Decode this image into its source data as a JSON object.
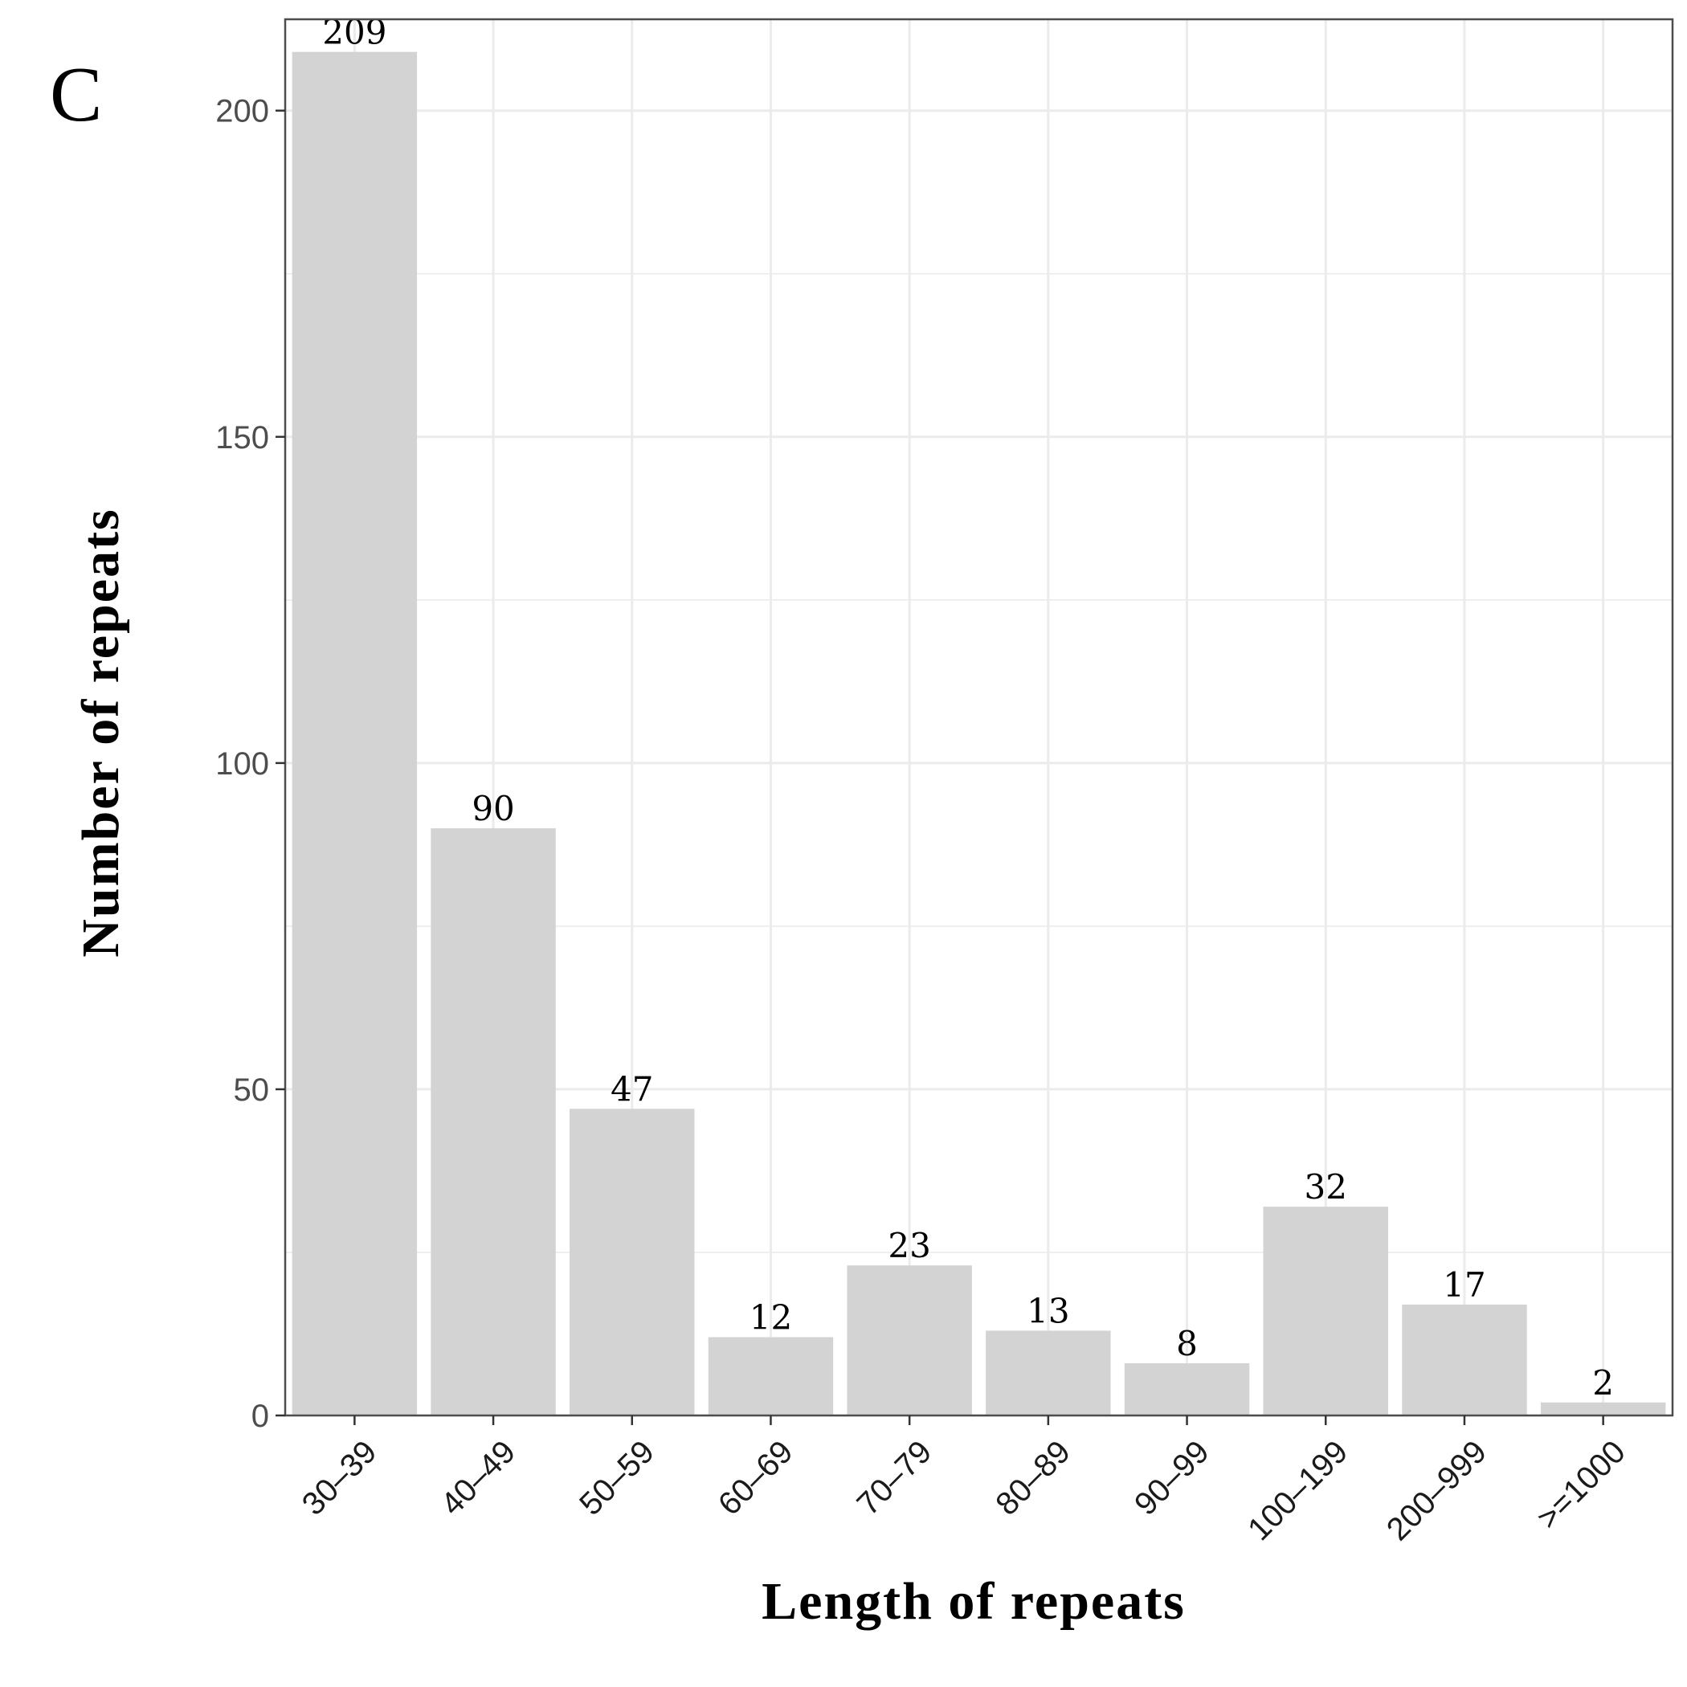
{
  "panel_label": "C",
  "chart_data": {
    "type": "bar",
    "title": "",
    "xlabel": "Length of repeats",
    "ylabel": "Number of repeats",
    "categories": [
      "30–39",
      "40–49",
      "50–59",
      "60–69",
      "70–79",
      "80–89",
      "90–99",
      "100–199",
      "200–999",
      ">=1000"
    ],
    "values": [
      209,
      90,
      47,
      12,
      23,
      13,
      8,
      32,
      17,
      2
    ],
    "data_labels": [
      "209",
      "90",
      "47",
      "12",
      "23",
      "13",
      "8",
      "32",
      "17",
      "2"
    ],
    "ylim": [
      0,
      214
    ],
    "yticks": [
      0,
      50,
      100,
      150,
      200
    ],
    "ytick_labels": [
      "0",
      "50",
      "100",
      "150",
      "200"
    ],
    "grid": true,
    "legend": "none",
    "bar_color": "#d3d3d3",
    "grid_color": "#ebebeb",
    "panel_border_color": "#4d4d4d"
  }
}
